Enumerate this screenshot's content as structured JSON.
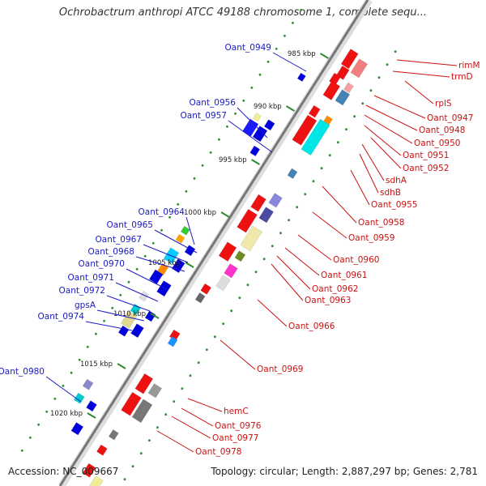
{
  "title": "Ochrobactrum anthropi ATCC 49188 chromosome 1, complete sequ...",
  "footer": {
    "accession": "Accession: NC_009667",
    "stats": "Topology: circular; Length: 2,887,297 bp; Genes: 2,781"
  },
  "colors": {
    "forward_label": "#1a1ac8",
    "reverse_label": "#cc1111",
    "backbone": "#777777"
  },
  "ticks": [
    "985 kbp",
    "990 kbp",
    "995 kbp",
    "1000 kbp",
    "1005 kbp",
    "1010 kbp",
    "1015 kbp",
    "1020 kbp"
  ],
  "left_labels": [
    "Oant_0949",
    "Oant_0956",
    "Oant_0957",
    "Oant_0964",
    "Oant_0965",
    "Oant_0967",
    "Oant_0968",
    "Oant_0970",
    "Oant_0971",
    "Oant_0972",
    "gpsA",
    "Oant_0974",
    "Oant_0980"
  ],
  "right_labels": [
    "rimM",
    "trmD",
    "rplS",
    "Oant_0947",
    "Oant_0948",
    "Oant_0950",
    "Oant_0951",
    "Oant_0952",
    "sdhA",
    "sdhB",
    "Oant_0955",
    "Oant_0958",
    "Oant_0959",
    "Oant_0960",
    "Oant_0961",
    "Oant_0962",
    "Oant_0963",
    "Oant_0966",
    "Oant_0969",
    "hemC",
    "Oant_0976",
    "Oant_0977",
    "Oant_0978"
  ]
}
